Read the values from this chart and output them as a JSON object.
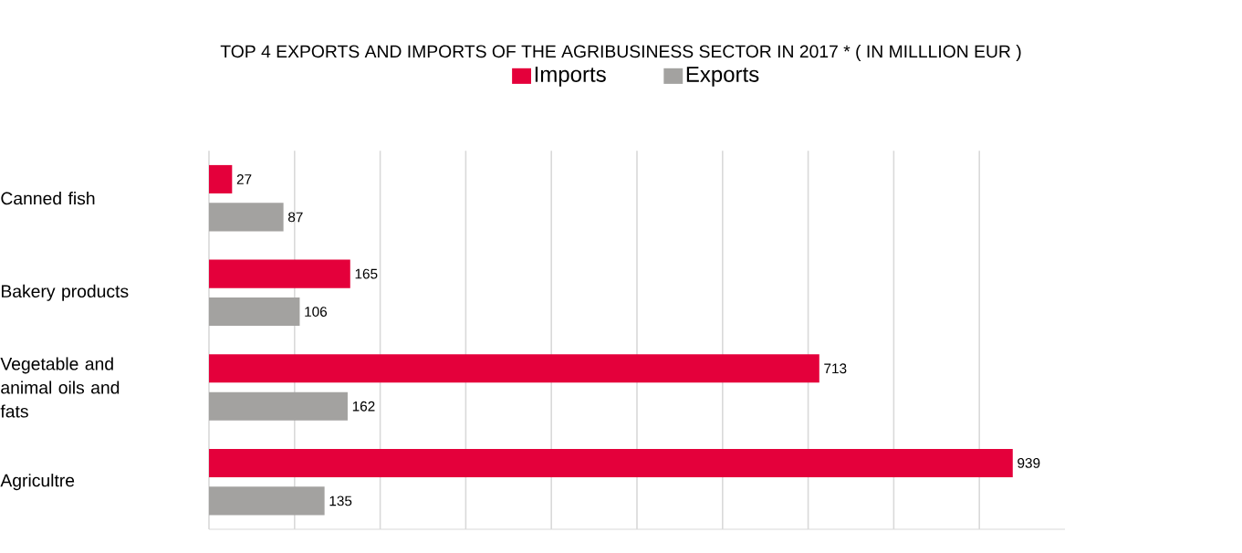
{
  "chart_data": {
    "type": "bar",
    "orientation": "horizontal",
    "title": "TOP 4 EXPORTS AND IMPORTS OF THE AGRIBUSINESS SECTOR IN 2017 * ( IN MILLLION EUR )",
    "categories": [
      "Canned fish",
      "Bakery products",
      "Vegetable and animal oils and fats",
      "Agricultre"
    ],
    "series": [
      {
        "name": "Imports",
        "color": "#e4003b",
        "values": [
          27,
          165,
          713,
          939
        ]
      },
      {
        "name": "Exports",
        "color": "#a3a2a0",
        "values": [
          87,
          106,
          162,
          135
        ]
      }
    ],
    "xlim": [
      0,
      1000
    ],
    "xticks": [
      {
        "value": 0,
        "label": null
      },
      {
        "value": 100,
        "label": null
      },
      {
        "value": 200,
        "label": null
      },
      {
        "value": 300,
        "label": null
      },
      {
        "value": 400,
        "label": null
      },
      {
        "value": 500,
        "label": null
      },
      {
        "value": 600,
        "label": null
      },
      {
        "value": 700,
        "label": null
      },
      {
        "value": 800,
        "label": null
      },
      {
        "value": 900,
        "label": null
      }
    ],
    "tick_labels": "y",
    "grid": "x",
    "legend": "top",
    "data_labels": true
  }
}
